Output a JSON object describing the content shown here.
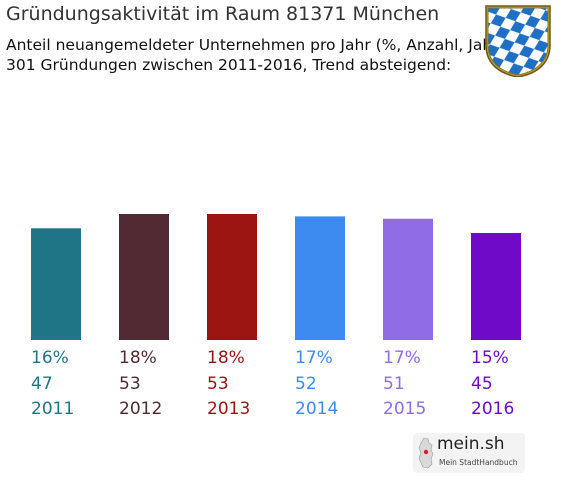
{
  "header": {
    "title": "Gründungsaktivität im Raum 81371 München",
    "subtitle_line1": "Anteil neuangemeldeter Unternehmen pro Jahr (%, Anzahl, Jahr)",
    "subtitle_line2": "301 Gründungen zwischen 2011-2016, Trend absteigend:"
  },
  "crest": {
    "icon": "bavarian-lozenge-crest-icon",
    "colors": [
      "#ffffff",
      "#1f6fc5",
      "#c9a227"
    ]
  },
  "logo": {
    "name": "mein.sh",
    "tagline": "Mein StadtHandbuch"
  },
  "chart_data": {
    "type": "bar",
    "title": "Gründungsaktivität im Raum 81371 München",
    "categories": [
      "2011",
      "2012",
      "2013",
      "2014",
      "2015",
      "2016"
    ],
    "percent_labels": [
      "16%",
      "18%",
      "18%",
      "17%",
      "17%",
      "15%"
    ],
    "values": [
      47,
      53,
      53,
      52,
      51,
      45
    ],
    "colors": [
      "#1f7585",
      "#522a33",
      "#9a1512",
      "#3d8bf0",
      "#8f6be6",
      "#6f0ac8"
    ],
    "grid": false,
    "legend": "none"
  }
}
